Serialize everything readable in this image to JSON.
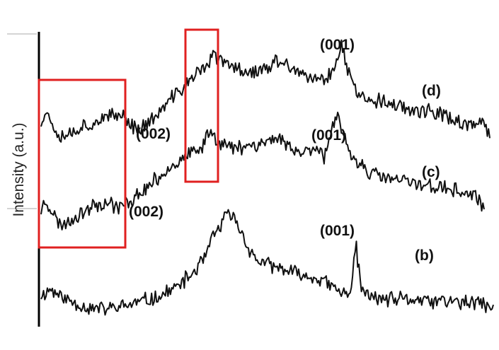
{
  "chart_data": {
    "type": "line",
    "ylabel": "Intensity (a.u.)",
    "xlabel": "",
    "grid": false,
    "legend": "none",
    "colors": {
      "trace": "#111111",
      "highlight": "#e02020",
      "axis": "#000000"
    },
    "series": [
      {
        "name": "(b)",
        "noise": 0.18,
        "points": [
          [
            0.0,
            0.5
          ],
          [
            0.02,
            0.7
          ],
          [
            0.05,
            0.45
          ],
          [
            0.08,
            0.3
          ],
          [
            0.1,
            0.2
          ],
          [
            0.14,
            0.15
          ],
          [
            0.18,
            0.22
          ],
          [
            0.22,
            0.35
          ],
          [
            0.26,
            0.48
          ],
          [
            0.3,
            0.75
          ],
          [
            0.33,
            1.05
          ],
          [
            0.36,
            1.5
          ],
          [
            0.38,
            2.1
          ],
          [
            0.4,
            2.5
          ],
          [
            0.415,
            2.75
          ],
          [
            0.43,
            2.55
          ],
          [
            0.45,
            2.05
          ],
          [
            0.47,
            1.55
          ],
          [
            0.5,
            1.35
          ],
          [
            0.54,
            1.2
          ],
          [
            0.58,
            1.05
          ],
          [
            0.62,
            0.95
          ],
          [
            0.65,
            0.7
          ],
          [
            0.67,
            0.55
          ],
          [
            0.685,
            0.6
          ],
          [
            0.69,
            1.3
          ],
          [
            0.695,
            2.0
          ],
          [
            0.7,
            1.45
          ],
          [
            0.71,
            0.6
          ],
          [
            0.74,
            0.45
          ],
          [
            0.78,
            0.4
          ],
          [
            0.82,
            0.42
          ],
          [
            0.86,
            0.35
          ],
          [
            0.9,
            0.38
          ],
          [
            0.94,
            0.3
          ],
          [
            0.97,
            0.33
          ],
          [
            1.0,
            0.15
          ]
        ]
      },
      {
        "name": "(c)",
        "noise": 0.18,
        "points": [
          [
            0.0,
            0.6
          ],
          [
            0.01,
            0.95
          ],
          [
            0.02,
            0.7
          ],
          [
            0.04,
            0.25
          ],
          [
            0.06,
            0.3
          ],
          [
            0.09,
            0.55
          ],
          [
            0.12,
            0.8
          ],
          [
            0.15,
            0.85
          ],
          [
            0.18,
            0.7
          ],
          [
            0.21,
            0.95
          ],
          [
            0.25,
            1.35
          ],
          [
            0.29,
            1.8
          ],
          [
            0.33,
            2.1
          ],
          [
            0.36,
            2.25
          ],
          [
            0.38,
            2.8
          ],
          [
            0.4,
            2.55
          ],
          [
            0.43,
            2.3
          ],
          [
            0.46,
            2.4
          ],
          [
            0.5,
            2.45
          ],
          [
            0.53,
            2.6
          ],
          [
            0.56,
            2.4
          ],
          [
            0.58,
            2.2
          ],
          [
            0.6,
            2.25
          ],
          [
            0.62,
            2.4
          ],
          [
            0.64,
            2.1
          ],
          [
            0.66,
            2.9
          ],
          [
            0.67,
            3.15
          ],
          [
            0.68,
            2.7
          ],
          [
            0.7,
            2.1
          ],
          [
            0.72,
            1.9
          ],
          [
            0.75,
            1.6
          ],
          [
            0.8,
            1.45
          ],
          [
            0.85,
            1.35
          ],
          [
            0.9,
            1.25
          ],
          [
            0.94,
            1.15
          ],
          [
            0.97,
            1.05
          ],
          [
            0.99,
            0.9
          ],
          [
            1.0,
            0.65
          ]
        ]
      },
      {
        "name": "(d)",
        "noise": 0.18,
        "points": [
          [
            0.0,
            0.6
          ],
          [
            0.01,
            0.95
          ],
          [
            0.02,
            0.7
          ],
          [
            0.04,
            0.3
          ],
          [
            0.06,
            0.3
          ],
          [
            0.1,
            0.55
          ],
          [
            0.14,
            0.7
          ],
          [
            0.18,
            0.85
          ],
          [
            0.2,
            0.55
          ],
          [
            0.22,
            0.45
          ],
          [
            0.25,
            0.7
          ],
          [
            0.28,
            1.1
          ],
          [
            0.31,
            1.5
          ],
          [
            0.34,
            1.85
          ],
          [
            0.37,
            2.2
          ],
          [
            0.385,
            2.45
          ],
          [
            0.4,
            2.3
          ],
          [
            0.43,
            2.1
          ],
          [
            0.47,
            2.0
          ],
          [
            0.5,
            2.05
          ],
          [
            0.53,
            2.3
          ],
          [
            0.56,
            2.1
          ],
          [
            0.59,
            1.8
          ],
          [
            0.62,
            1.75
          ],
          [
            0.64,
            1.9
          ],
          [
            0.66,
            2.3
          ],
          [
            0.67,
            2.7
          ],
          [
            0.68,
            2.2
          ],
          [
            0.7,
            1.5
          ],
          [
            0.73,
            1.25
          ],
          [
            0.77,
            1.15
          ],
          [
            0.82,
            1.0
          ],
          [
            0.86,
            0.9
          ],
          [
            0.9,
            0.8
          ],
          [
            0.94,
            0.6
          ],
          [
            0.97,
            0.5
          ],
          [
            0.99,
            0.55
          ],
          [
            1.0,
            0.2
          ]
        ]
      }
    ],
    "annotations": [
      "(001)",
      "(d)",
      "(002)",
      "(001)",
      "(c)",
      "(002)",
      "(001)",
      "(b)"
    ]
  }
}
